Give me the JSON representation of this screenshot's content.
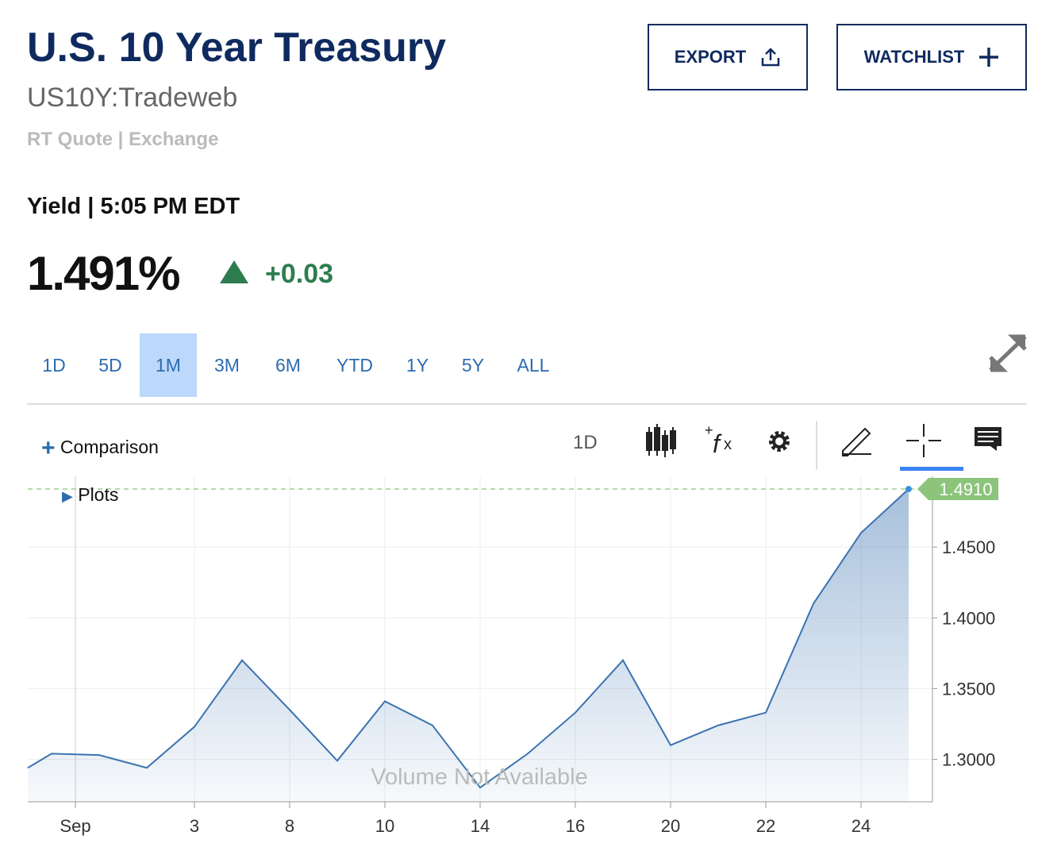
{
  "header": {
    "title": "U.S. 10 Year Treasury",
    "symbol": "US10Y:Tradeweb",
    "quote_type": "RT Quote",
    "quote_source": "Exchange",
    "buttons": [
      "EXPORT",
      "WATCHLIST"
    ]
  },
  "quote": {
    "label": "Yield",
    "time": "5:05 PM EDT",
    "price": "1.491%",
    "change": "+0.03"
  },
  "ranges": {
    "items": [
      "1D",
      "5D",
      "1M",
      "3M",
      "6M",
      "YTD",
      "1Y",
      "5Y",
      "ALL"
    ],
    "active": "1M"
  },
  "toolbar": {
    "comparison": "Comparison",
    "interval": "1D",
    "plots": "Plots"
  },
  "chart_data": {
    "type": "area",
    "annotation": "Volume Not Available",
    "x": [
      0,
      0.5,
      1.5,
      2.5,
      3.5,
      4.5,
      5.5,
      6.5,
      7.5,
      8.5,
      9.5,
      10.5,
      11.5,
      12.5,
      13.5,
      14.5,
      15.5,
      16.5,
      17.5,
      18.5
    ],
    "series": [
      {
        "name": "US10Y",
        "color": "#3b73b0",
        "values": [
          1.294,
          1.304,
          1.303,
          1.294,
          1.323,
          1.37,
          1.335,
          1.299,
          1.341,
          1.324,
          1.28,
          1.304,
          1.333,
          1.37,
          1.31,
          1.324,
          1.333,
          1.41,
          1.46,
          1.491
        ]
      }
    ],
    "last_value_label": "1.4910",
    "xlim": [
      0,
      19
    ],
    "xticks": [
      {
        "value": 1,
        "label": "Sep"
      },
      {
        "value": 3.5,
        "label": "3"
      },
      {
        "value": 5.5,
        "label": "8"
      },
      {
        "value": 7.5,
        "label": "10"
      },
      {
        "value": 9.5,
        "label": "14"
      },
      {
        "value": 11.5,
        "label": "16"
      },
      {
        "value": 13.5,
        "label": "20"
      },
      {
        "value": 15.5,
        "label": "22"
      },
      {
        "value": 17.5,
        "label": "24"
      }
    ],
    "ylim": [
      1.27,
      1.5
    ],
    "yticks": [
      {
        "value": 1.3,
        "label": "1.3000"
      },
      {
        "value": 1.35,
        "label": "1.3500"
      },
      {
        "value": 1.4,
        "label": "1.4000"
      },
      {
        "value": 1.45,
        "label": "1.4500"
      }
    ],
    "grid": true
  }
}
